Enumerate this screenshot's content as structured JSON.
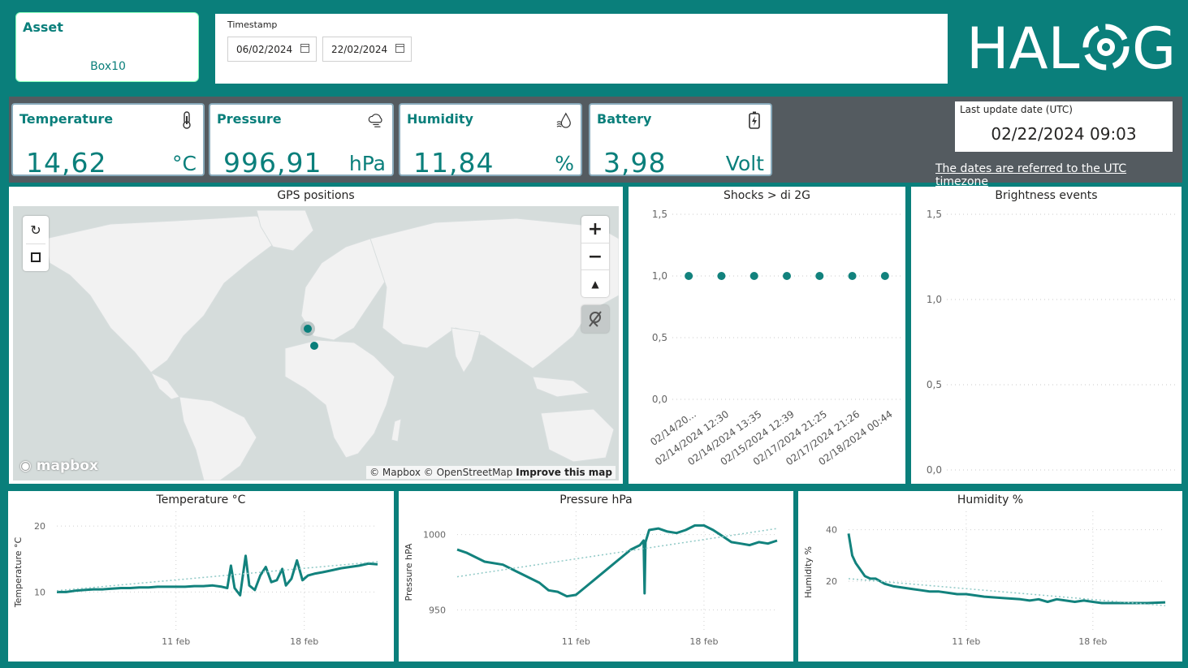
{
  "asset": {
    "title": "Asset",
    "value": "Box10"
  },
  "timestamp": {
    "label": "Timestamp",
    "start": "06/02/2024",
    "end": "22/02/2024"
  },
  "logo": {
    "text": "HALOG"
  },
  "kpis": {
    "temperature": {
      "title": "Temperature",
      "value": "14,62",
      "unit": "°C",
      "icon": "thermometer-icon"
    },
    "pressure": {
      "title": "Pressure",
      "value": "996,91",
      "unit": "hPa",
      "icon": "cloud-icon"
    },
    "humidity": {
      "title": "Humidity",
      "value": "11,84",
      "unit": "%",
      "icon": "water-drop-icon"
    },
    "battery": {
      "title": "Battery",
      "value": "3,98",
      "unit": "Volt",
      "icon": "battery-icon"
    }
  },
  "last_update": {
    "label": "Last update date (UTC)",
    "value": "02/22/2024 09:03",
    "note": "The dates are referred to the UTC timezone"
  },
  "gps": {
    "title": "GPS positions",
    "logo_text": "mapbox",
    "attribution": "© Mapbox © OpenStreetMap",
    "improve_link": "Improve this map"
  },
  "colors": {
    "accent": "#0a7f7b",
    "band": "#545b60",
    "series": "#12827d"
  },
  "chart_data": [
    {
      "id": "shocks",
      "type": "scatter",
      "title": "Shocks > di 2G",
      "categories": [
        "02/14/20...",
        "02/14/2024 12:30",
        "02/14/2024 13:35",
        "02/15/2024 12:39",
        "02/17/2024 21:25",
        "02/17/2024 21:26",
        "02/18/2024 00:44"
      ],
      "values": [
        1,
        1,
        1,
        1,
        1,
        1,
        1
      ],
      "yticks": [
        "0,0",
        "0,5",
        "1,0",
        "1,5"
      ],
      "ylim": [
        0,
        1.5
      ]
    },
    {
      "id": "brightness",
      "type": "scatter",
      "title": "Brightness events",
      "categories": [],
      "values": [],
      "yticks": [
        "0,0",
        "0,5",
        "1,0",
        "1,5"
      ],
      "ylim": [
        0,
        1.5
      ]
    },
    {
      "id": "temperature",
      "type": "line",
      "title": "Temperature °C",
      "ylabel": "Temperature °C",
      "yticks": [
        {
          "v": 10,
          "label": "10"
        },
        {
          "v": 20,
          "label": "20"
        }
      ],
      "xticks": [
        {
          "x": 5,
          "label": "11 feb"
        },
        {
          "x": 12,
          "label": "18 feb"
        }
      ],
      "xlim": [
        -1.5,
        16
      ],
      "ylim": [
        5,
        21
      ],
      "x": [
        -1.5,
        -1,
        -0.5,
        0,
        0.5,
        1,
        1.5,
        2,
        2.5,
        3,
        3.5,
        4,
        4.5,
        5,
        5.5,
        6,
        6.5,
        7,
        7.5,
        7.8,
        8.0,
        8.2,
        8.5,
        8.8,
        9.0,
        9.3,
        9.6,
        9.9,
        10.2,
        10.5,
        10.8,
        11.0,
        11.3,
        11.6,
        11.9,
        12.2,
        12.6,
        13,
        13.5,
        14,
        14.5,
        15,
        15.5,
        16
      ],
      "values": [
        10.0,
        10.0,
        10.2,
        10.3,
        10.4,
        10.4,
        10.5,
        10.6,
        10.6,
        10.7,
        10.7,
        10.8,
        10.8,
        10.8,
        10.8,
        10.9,
        10.9,
        11.0,
        10.8,
        10.6,
        14.0,
        10.6,
        9.5,
        15.5,
        11.0,
        10.3,
        12.5,
        13.8,
        11.5,
        11.8,
        13.5,
        11.0,
        12.0,
        14.8,
        11.8,
        12.5,
        12.8,
        13.0,
        13.3,
        13.6,
        13.8,
        14.0,
        14.3,
        14.2
      ],
      "trend": [
        10.2,
        14.6
      ]
    },
    {
      "id": "pressure",
      "type": "line",
      "title": "Pressure hPa",
      "ylabel": "Pressure hPA",
      "yticks": [
        {
          "v": 950,
          "label": "950"
        },
        {
          "v": 1000,
          "label": "1000"
        }
      ],
      "xticks": [
        {
          "x": 5,
          "label": "11 feb"
        },
        {
          "x": 12,
          "label": "18 feb"
        }
      ],
      "xlim": [
        -1.5,
        16
      ],
      "ylim": [
        940,
        1010
      ],
      "x": [
        -1.5,
        -1,
        0,
        1,
        2,
        3,
        3.5,
        4,
        4.5,
        5,
        5.5,
        6,
        7,
        8,
        8.5,
        8.7,
        8.75,
        8.8,
        9,
        9.5,
        10,
        10.5,
        11,
        11.5,
        12,
        12.5,
        13,
        13.5,
        14,
        14.5,
        15,
        15.5,
        16
      ],
      "values": [
        990,
        988,
        982,
        980,
        974,
        968,
        963,
        962,
        959,
        960,
        965,
        970,
        980,
        990,
        993,
        996,
        961,
        995,
        1003,
        1004,
        1002,
        1001,
        1003,
        1006,
        1006,
        1003,
        999,
        995,
        994,
        993,
        995,
        994,
        996
      ],
      "trend": [
        972,
        1004
      ]
    },
    {
      "id": "humidity",
      "type": "line",
      "title": "Humidity %",
      "ylabel": "Humidity %",
      "yticks": [
        {
          "v": 20,
          "label": "20"
        },
        {
          "v": 40,
          "label": "40"
        }
      ],
      "xticks": [
        {
          "x": 5,
          "label": "11 feb"
        },
        {
          "x": 12,
          "label": "18 feb"
        }
      ],
      "xlim": [
        -1.5,
        16
      ],
      "ylim": [
        3,
        44
      ],
      "x": [
        -1.5,
        -1.3,
        -1.1,
        -0.9,
        -0.6,
        -0.3,
        0,
        0.5,
        1,
        1.5,
        2,
        2.5,
        3,
        3.5,
        4,
        4.5,
        5,
        6,
        7,
        8,
        8.5,
        9,
        9.5,
        10,
        10.5,
        11,
        11.5,
        12,
        12.5,
        13,
        14,
        15,
        16
      ],
      "values": [
        38.5,
        30,
        27,
        25,
        22,
        21,
        21,
        19,
        18,
        17.5,
        17,
        16.5,
        16,
        16,
        15.5,
        15,
        15,
        14,
        13.5,
        13,
        12.5,
        13,
        12,
        13,
        12.5,
        12,
        12.5,
        12,
        11.5,
        11.5,
        11.5,
        11.5,
        11.8
      ],
      "trend": [
        21,
        10.5
      ]
    }
  ]
}
